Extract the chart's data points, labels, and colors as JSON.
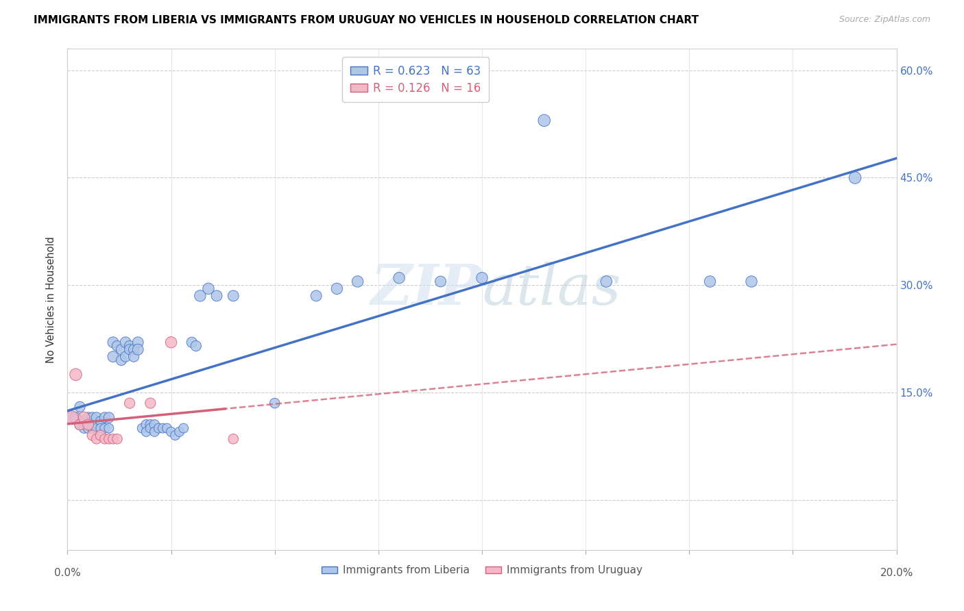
{
  "title": "IMMIGRANTS FROM LIBERIA VS IMMIGRANTS FROM URUGUAY NO VEHICLES IN HOUSEHOLD CORRELATION CHART",
  "source": "Source: ZipAtlas.com",
  "ylabel": "No Vehicles in Household",
  "right_yticks": [
    15.0,
    30.0,
    45.0,
    60.0
  ],
  "liberia_color": "#aec6e8",
  "liberia_line_color": "#4472c4",
  "uruguay_color": "#f4b8c8",
  "uruguay_line_color": "#d4607a",
  "watermark": "ZIPatlas",
  "xlim": [
    0.0,
    0.2
  ],
  "ylim": [
    -0.07,
    0.63
  ],
  "liberia_points": [
    [
      0.001,
      0.115
    ],
    [
      0.002,
      0.115
    ],
    [
      0.003,
      0.13
    ],
    [
      0.003,
      0.105
    ],
    [
      0.004,
      0.11
    ],
    [
      0.004,
      0.1
    ],
    [
      0.005,
      0.115
    ],
    [
      0.005,
      0.1
    ],
    [
      0.006,
      0.115
    ],
    [
      0.006,
      0.1
    ],
    [
      0.007,
      0.115
    ],
    [
      0.007,
      0.1
    ],
    [
      0.008,
      0.11
    ],
    [
      0.008,
      0.1
    ],
    [
      0.009,
      0.115
    ],
    [
      0.009,
      0.1
    ],
    [
      0.01,
      0.115
    ],
    [
      0.01,
      0.1
    ],
    [
      0.011,
      0.22
    ],
    [
      0.011,
      0.2
    ],
    [
      0.012,
      0.215
    ],
    [
      0.013,
      0.21
    ],
    [
      0.013,
      0.195
    ],
    [
      0.014,
      0.22
    ],
    [
      0.014,
      0.2
    ],
    [
      0.015,
      0.215
    ],
    [
      0.015,
      0.21
    ],
    [
      0.016,
      0.21
    ],
    [
      0.016,
      0.2
    ],
    [
      0.017,
      0.22
    ],
    [
      0.017,
      0.21
    ],
    [
      0.018,
      0.1
    ],
    [
      0.019,
      0.105
    ],
    [
      0.019,
      0.095
    ],
    [
      0.02,
      0.105
    ],
    [
      0.02,
      0.1
    ],
    [
      0.021,
      0.105
    ],
    [
      0.021,
      0.095
    ],
    [
      0.022,
      0.1
    ],
    [
      0.023,
      0.1
    ],
    [
      0.024,
      0.1
    ],
    [
      0.025,
      0.095
    ],
    [
      0.026,
      0.09
    ],
    [
      0.027,
      0.095
    ],
    [
      0.028,
      0.1
    ],
    [
      0.03,
      0.22
    ],
    [
      0.031,
      0.215
    ],
    [
      0.032,
      0.285
    ],
    [
      0.034,
      0.295
    ],
    [
      0.036,
      0.285
    ],
    [
      0.04,
      0.285
    ],
    [
      0.05,
      0.135
    ],
    [
      0.06,
      0.285
    ],
    [
      0.065,
      0.295
    ],
    [
      0.07,
      0.305
    ],
    [
      0.08,
      0.31
    ],
    [
      0.09,
      0.305
    ],
    [
      0.1,
      0.31
    ],
    [
      0.115,
      0.53
    ],
    [
      0.13,
      0.305
    ],
    [
      0.155,
      0.305
    ],
    [
      0.165,
      0.305
    ],
    [
      0.19,
      0.45
    ]
  ],
  "uruguay_points": [
    [
      0.001,
      0.115
    ],
    [
      0.002,
      0.175
    ],
    [
      0.003,
      0.105
    ],
    [
      0.004,
      0.115
    ],
    [
      0.005,
      0.105
    ],
    [
      0.006,
      0.09
    ],
    [
      0.007,
      0.085
    ],
    [
      0.008,
      0.09
    ],
    [
      0.009,
      0.085
    ],
    [
      0.01,
      0.085
    ],
    [
      0.011,
      0.085
    ],
    [
      0.012,
      0.085
    ],
    [
      0.015,
      0.135
    ],
    [
      0.02,
      0.135
    ],
    [
      0.025,
      0.22
    ],
    [
      0.04,
      0.085
    ]
  ],
  "liberia_point_sizes": [
    150,
    130,
    120,
    120,
    110,
    110,
    120,
    110,
    120,
    110,
    120,
    110,
    110,
    100,
    120,
    100,
    120,
    100,
    130,
    130,
    120,
    120,
    120,
    130,
    120,
    120,
    120,
    120,
    120,
    130,
    130,
    100,
    110,
    100,
    110,
    100,
    110,
    100,
    100,
    100,
    100,
    100,
    100,
    100,
    100,
    120,
    120,
    140,
    140,
    130,
    130,
    110,
    130,
    140,
    140,
    140,
    130,
    140,
    160,
    140,
    140,
    140,
    160
  ],
  "uruguay_point_sizes": [
    200,
    160,
    130,
    140,
    130,
    120,
    110,
    120,
    110,
    110,
    110,
    110,
    120,
    120,
    140,
    110
  ]
}
